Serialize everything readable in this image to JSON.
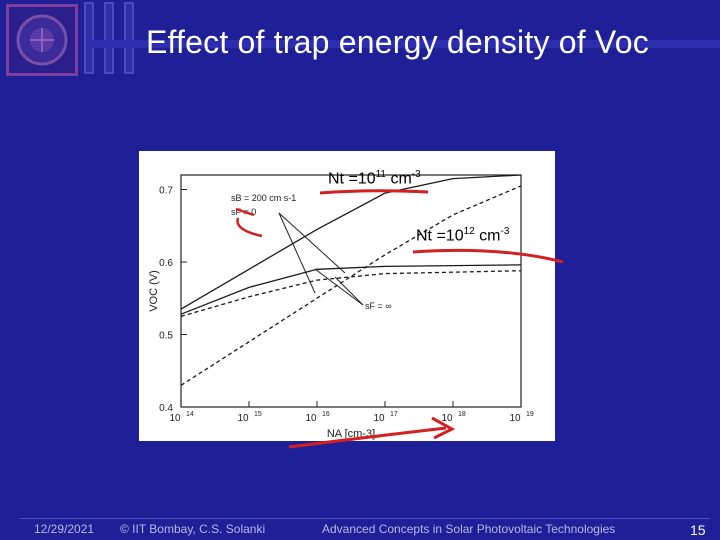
{
  "slide": {
    "title": "Effect of trap energy density of Voc",
    "date": "12/29/2021",
    "copyright": "© IIT Bombay, C.S. Solanki",
    "course": "Advanced Concepts in Solar Photovoltaic Technologies",
    "page_number": "15",
    "colors": {
      "background": "#1f1f97",
      "annotation_ink": "#d32020",
      "plot_bg": "#ffffff"
    }
  },
  "annotations": [
    {
      "base": "Nt =10",
      "exp": "11",
      "unit": "cm",
      "unit_exp": "-3"
    },
    {
      "base": "Nt =10",
      "exp": "12",
      "unit": "cm",
      "unit_exp": "-3"
    }
  ],
  "chart_data": {
    "type": "line",
    "title": "",
    "xlabel": "NA",
    "xlabel_sub": "A",
    "xlabel_unit": "cm-3",
    "ylabel": "VOC (V)",
    "xscale": "log",
    "xlim": [
      100000000000000.0,
      1e+19
    ],
    "ylim": [
      0.4,
      0.72
    ],
    "x_ticks": [
      {
        "value": 100000000000000.0,
        "base": "10",
        "exp": "14"
      },
      {
        "value": 1000000000000000.0,
        "base": "10",
        "exp": "15"
      },
      {
        "value": 1e+16,
        "base": "10",
        "exp": "16"
      },
      {
        "value": 1e+17,
        "base": "10",
        "exp": "17"
      },
      {
        "value": 1e+18,
        "base": "10",
        "exp": "18"
      },
      {
        "value": 1e+19,
        "base": "10",
        "exp": "19"
      }
    ],
    "y_ticks": [
      "0.4",
      "0.5",
      "0.6",
      "0.7"
    ],
    "legend_labels": [
      {
        "text": "sB = 200 cm s-1"
      },
      {
        "text": "sF = 0"
      },
      {
        "text": "sF = ∞"
      }
    ],
    "series": [
      {
        "style": "solid",
        "x": [
          100000000000000.0,
          1000000000000000.0,
          1e+16,
          1e+17,
          1e+18,
          1e+19
        ],
        "y": [
          0.535,
          0.59,
          0.645,
          0.695,
          0.715,
          0.72
        ]
      },
      {
        "style": "dashed",
        "x": [
          100000000000000.0,
          1000000000000000.0,
          1e+16,
          1e+17,
          1e+18,
          1e+19
        ],
        "y": [
          0.43,
          0.49,
          0.55,
          0.61,
          0.665,
          0.705
        ]
      },
      {
        "style": "solid",
        "x": [
          100000000000000.0,
          1000000000000000.0,
          1e+16,
          1e+17,
          1e+18,
          1e+19
        ],
        "y": [
          0.528,
          0.565,
          0.59,
          0.594,
          0.595,
          0.596
        ]
      },
      {
        "style": "dashed",
        "x": [
          100000000000000.0,
          1000000000000000.0,
          1e+16,
          1e+17,
          1e+18,
          1e+19
        ],
        "y": [
          0.525,
          0.552,
          0.575,
          0.584,
          0.586,
          0.588
        ]
      }
    ]
  }
}
